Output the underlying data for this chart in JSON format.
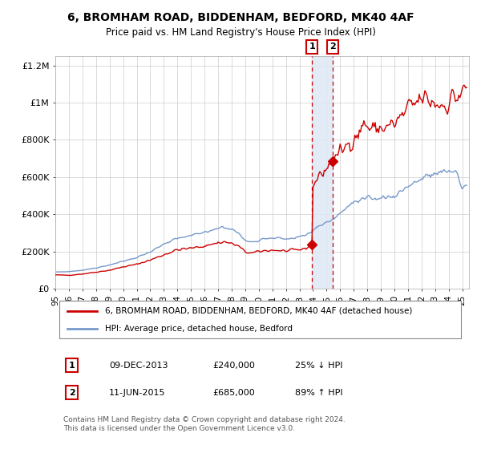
{
  "title": "6, BROMHAM ROAD, BIDDENHAM, BEDFORD, MK40 4AF",
  "subtitle": "Price paid vs. HM Land Registry's House Price Index (HPI)",
  "title_fontsize": 10,
  "subtitle_fontsize": 8.5,
  "red_color": "#cc0000",
  "blue_color": "#7799cc",
  "background_color": "#ffffff",
  "grid_color": "#cccccc",
  "ylim": [
    0,
    1250000
  ],
  "yticks": [
    0,
    200000,
    400000,
    600000,
    800000,
    1000000,
    1200000
  ],
  "ytick_labels": [
    "£0",
    "£200K",
    "£400K",
    "£600K",
    "£800K",
    "£1M",
    "£1.2M"
  ],
  "xlim_start": 1995.0,
  "xlim_end": 2025.5,
  "xticks": [
    1995,
    1996,
    1997,
    1998,
    1999,
    2000,
    2001,
    2002,
    2003,
    2004,
    2005,
    2006,
    2007,
    2008,
    2009,
    2010,
    2011,
    2012,
    2013,
    2014,
    2015,
    2016,
    2017,
    2018,
    2019,
    2020,
    2021,
    2022,
    2023,
    2024,
    2025
  ],
  "marker1_x": 2013.92,
  "marker1_y": 240000,
  "marker2_x": 2015.45,
  "marker2_y": 685000,
  "vline1_x": 2013.92,
  "vline2_x": 2015.45,
  "legend_label1": "6, BROMHAM ROAD, BIDDENHAM, BEDFORD, MK40 4AF (detached house)",
  "legend_label2": "HPI: Average price, detached house, Bedford",
  "table_row1": [
    "1",
    "09-DEC-2013",
    "£240,000",
    "25% ↓ HPI"
  ],
  "table_row2": [
    "2",
    "11-JUN-2015",
    "£685,000",
    "89% ↑ HPI"
  ],
  "footnote": "Contains HM Land Registry data © Crown copyright and database right 2024.\nThis data is licensed under the Open Government Licence v3.0.",
  "shaded_region_color": "#dde8f5",
  "red_line_seed": 42,
  "blue_line_seed": 99
}
